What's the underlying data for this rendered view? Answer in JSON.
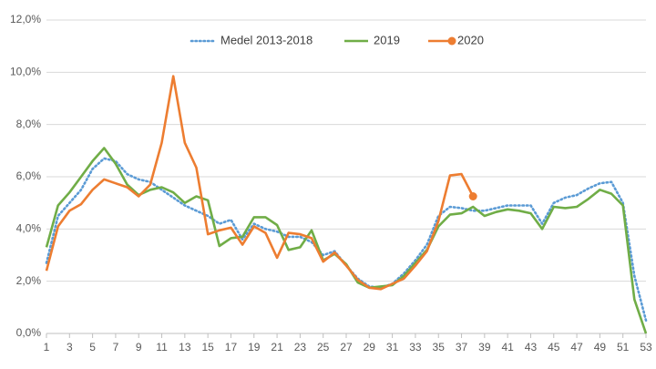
{
  "chart_data": {
    "type": "line",
    "x": [
      1,
      2,
      3,
      4,
      5,
      6,
      7,
      8,
      9,
      10,
      11,
      12,
      13,
      14,
      15,
      16,
      17,
      18,
      19,
      20,
      21,
      22,
      23,
      24,
      25,
      26,
      27,
      28,
      29,
      30,
      31,
      32,
      33,
      34,
      35,
      36,
      37,
      38,
      39,
      40,
      41,
      42,
      43,
      44,
      45,
      46,
      47,
      48,
      49,
      50,
      51,
      52,
      53
    ],
    "xlim": [
      1,
      53
    ],
    "xticks": [
      1,
      3,
      5,
      7,
      9,
      11,
      13,
      15,
      17,
      19,
      21,
      23,
      25,
      27,
      29,
      31,
      33,
      35,
      37,
      39,
      41,
      43,
      45,
      47,
      49,
      51,
      53
    ],
    "ylim": [
      0,
      12
    ],
    "yticks": [
      {
        "value": 0,
        "label": "0,0%"
      },
      {
        "value": 2,
        "label": "2,0%"
      },
      {
        "value": 4,
        "label": "4,0%"
      },
      {
        "value": 6,
        "label": "6,0%"
      },
      {
        "value": 8,
        "label": "8,0%"
      },
      {
        "value": 10,
        "label": "10,0%"
      },
      {
        "value": 12,
        "label": "12,0%"
      }
    ],
    "grid": true,
    "legend": "top",
    "series": [
      {
        "name": "Medel 2013-2018",
        "color": "#5b9bd5",
        "dash": "dotted",
        "values": [
          2.7,
          4.5,
          5.0,
          5.5,
          6.3,
          6.7,
          6.6,
          6.1,
          5.9,
          5.8,
          5.5,
          5.2,
          4.9,
          4.7,
          4.5,
          4.2,
          4.35,
          3.6,
          4.2,
          4.0,
          3.9,
          3.7,
          3.7,
          3.5,
          3.0,
          3.15,
          2.6,
          2.1,
          1.8,
          1.75,
          1.9,
          2.3,
          2.8,
          3.4,
          4.5,
          4.85,
          4.8,
          4.7,
          4.7,
          4.8,
          4.9,
          4.9,
          4.9,
          4.2,
          5.0,
          5.2,
          5.3,
          5.55,
          5.75,
          5.8,
          5.0,
          2.2,
          0.5
        ]
      },
      {
        "name": "2019",
        "color": "#70ad47",
        "values": [
          3.3,
          4.9,
          5.4,
          6.0,
          6.6,
          7.1,
          6.5,
          5.7,
          5.3,
          5.5,
          5.6,
          5.4,
          5.0,
          5.25,
          5.1,
          3.35,
          3.65,
          3.7,
          4.45,
          4.45,
          4.15,
          3.2,
          3.3,
          3.95,
          2.8,
          3.05,
          2.65,
          1.95,
          1.75,
          1.8,
          1.85,
          2.2,
          2.7,
          3.2,
          4.1,
          4.55,
          4.6,
          4.85,
          4.5,
          4.65,
          4.75,
          4.7,
          4.6,
          4.0,
          4.85,
          4.8,
          4.85,
          5.15,
          5.5,
          5.35,
          4.9,
          1.3,
          0.0
        ]
      },
      {
        "name": "2020",
        "color": "#ed7d31",
        "marker": "end",
        "values": [
          2.4,
          4.1,
          4.7,
          4.95,
          5.5,
          5.9,
          5.75,
          5.6,
          5.25,
          5.7,
          7.3,
          9.85,
          7.3,
          6.35,
          3.8,
          3.95,
          4.05,
          3.4,
          4.1,
          3.85,
          2.9,
          3.85,
          3.8,
          3.65,
          2.75,
          3.1,
          2.6,
          2.05,
          1.75,
          1.7,
          1.9,
          2.1,
          2.6,
          3.15,
          4.3,
          6.05,
          6.1,
          5.25,
          null,
          null,
          null,
          null,
          null,
          null,
          null,
          null,
          null,
          null,
          null,
          null,
          null,
          null,
          null
        ]
      }
    ]
  }
}
